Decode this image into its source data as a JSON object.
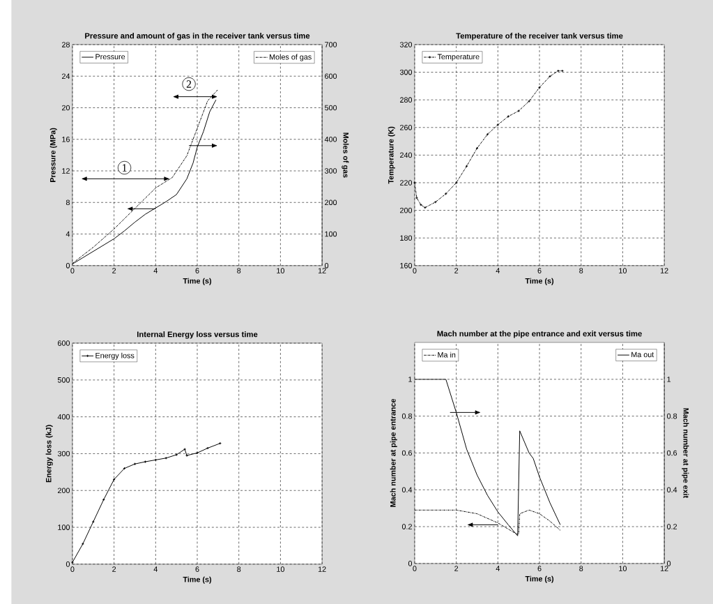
{
  "chart_data": [
    {
      "type": "line",
      "title": "Pressure and amount of gas in the receiver tank versus time",
      "xlabel": "Time (s)",
      "ylabel": "Pressure (MPa)",
      "y2label": "Moles of gas",
      "xlim": [
        0,
        12
      ],
      "xticks": [
        0,
        2,
        4,
        6,
        8,
        10,
        12
      ],
      "ylim": [
        0,
        28
      ],
      "yticks": [
        0,
        4,
        8,
        12,
        16,
        20,
        24,
        28
      ],
      "y2lim": [
        0,
        700
      ],
      "y2ticks": [
        0,
        100,
        200,
        300,
        400,
        500,
        600,
        700
      ],
      "grid": true,
      "legend": "top",
      "annotations": [
        {
          "text": "1",
          "x": 2.5,
          "y": 12.4
        },
        {
          "text": "2",
          "x": 5.6,
          "y": 23.0
        }
      ],
      "series": [
        {
          "name": "Pressure",
          "color": "#000000",
          "line_style": "solid",
          "x": [
            0,
            0.5,
            1,
            1.5,
            2,
            2.5,
            3,
            3.5,
            4,
            4.5,
            5,
            5.5,
            5.8,
            6,
            6.3,
            6.6,
            6.9
          ],
          "values": [
            0.2,
            1,
            1.8,
            2.6,
            3.4,
            4.4,
            5.5,
            6.5,
            7.3,
            8.1,
            9,
            11,
            13,
            15,
            17,
            19.5,
            21
          ]
        },
        {
          "name": "Moles of gas",
          "color": "#000000",
          "line_style": "dashed",
          "axis": "y2",
          "x": [
            0,
            1,
            2,
            3,
            4,
            4.8,
            5.5,
            6,
            6.5,
            7
          ],
          "values": [
            7,
            58,
            116,
            181,
            246,
            279,
            348,
            435,
            522,
            558
          ]
        }
      ]
    },
    {
      "type": "line",
      "title": "Temperature of the receiver tank versus time",
      "xlabel": "Time (s)",
      "ylabel": "Temperature (K)",
      "xlim": [
        0,
        12
      ],
      "xticks": [
        0,
        2,
        4,
        6,
        8,
        10,
        12
      ],
      "ylim": [
        160,
        320
      ],
      "yticks": [
        160,
        180,
        200,
        220,
        240,
        260,
        280,
        300,
        320
      ],
      "grid": true,
      "legend": "top left",
      "marker": "cross",
      "line_style": "dashed",
      "series": [
        {
          "name": "Temperature",
          "color": "#000000",
          "x": [
            0,
            0.1,
            0.3,
            0.5,
            1,
            1.5,
            2,
            2.5,
            3,
            3.5,
            4,
            4.5,
            5,
            5.5,
            6,
            6.5,
            6.9,
            7.1
          ],
          "values": [
            220,
            209,
            204,
            202,
            206,
            212,
            220,
            232,
            245,
            255,
            262,
            268,
            272,
            279,
            289,
            297,
            301,
            301
          ]
        }
      ]
    },
    {
      "type": "line",
      "title": "Internal Energy loss versus time",
      "xlabel": "Time (s)",
      "ylabel": "Energy loss (kJ)",
      "xlim": [
        0,
        12
      ],
      "xticks": [
        0,
        2,
        4,
        6,
        8,
        10,
        12
      ],
      "ylim": [
        0,
        600
      ],
      "yticks": [
        0,
        100,
        200,
        300,
        400,
        500,
        600
      ],
      "grid": true,
      "legend": "top left",
      "marker": "cross",
      "line_style": "solid",
      "series": [
        {
          "name": "Energy loss",
          "color": "#000000",
          "x": [
            0,
            0.5,
            1,
            1.5,
            2,
            2.5,
            3,
            3.5,
            4,
            4.5,
            5,
            5.4,
            5.5,
            6,
            6.5,
            7.1
          ],
          "values": [
            5,
            55,
            115,
            175,
            230,
            260,
            272,
            278,
            283,
            288,
            297,
            312,
            295,
            302,
            315,
            328
          ]
        }
      ]
    },
    {
      "type": "line",
      "title": "Mach number at the pipe entrance and exit versus time",
      "xlabel": "Time (s)",
      "ylabel": "Mach number at pipe entrance",
      "y2label": "Mach number at pipe exit",
      "xlim": [
        0,
        12
      ],
      "xticks": [
        0,
        2,
        4,
        6,
        8,
        10,
        12
      ],
      "ylim": [
        0,
        1.2
      ],
      "yticks": [
        0,
        0.2,
        0.4,
        0.6,
        0.8,
        1
      ],
      "y2lim": [
        0,
        1.2
      ],
      "y2ticks": [
        0,
        0.2,
        0.4,
        0.6,
        0.8,
        1
      ],
      "grid": true,
      "legend": "top",
      "series": [
        {
          "name": "Ma in",
          "color": "#000000",
          "line_style": "dashed",
          "x": [
            0,
            1,
            2,
            3,
            4,
            4.9,
            5,
            5.05,
            5.5,
            6,
            6.5,
            7
          ],
          "values": [
            0.29,
            0.29,
            0.29,
            0.27,
            0.22,
            0.16,
            0.16,
            0.27,
            0.29,
            0.27,
            0.23,
            0.18
          ]
        },
        {
          "name": "Ma out",
          "color": "#000000",
          "line_style": "solid",
          "axis": "y2",
          "x": [
            0,
            1.5,
            2,
            2.5,
            3,
            3.5,
            4,
            4.5,
            4.95,
            5.05,
            5.5,
            5.7,
            6,
            6.5,
            7
          ],
          "values": [
            1,
            1,
            0.82,
            0.62,
            0.48,
            0.37,
            0.28,
            0.21,
            0.15,
            0.72,
            0.6,
            0.57,
            0.47,
            0.33,
            0.21
          ]
        }
      ]
    }
  ]
}
